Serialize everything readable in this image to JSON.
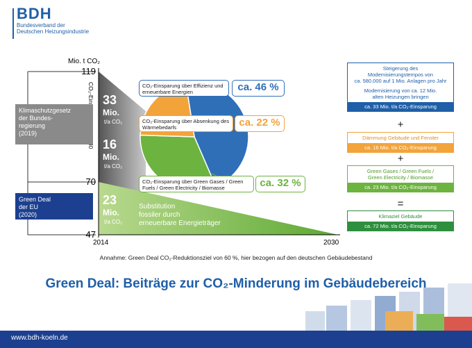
{
  "logo": {
    "abbr": "BDH",
    "line1": "Bundesverband der",
    "line2": "Deutschen Heizungsindustrie"
  },
  "chart_data": {
    "type": "pie",
    "ylabel_top": "Mio. t CO₂",
    "ylabel_side": "CO₂-Einsparung bis 2030",
    "y_ticks": [
      119,
      70,
      47
    ],
    "x_ticks": [
      "2014",
      "2030"
    ],
    "series": [
      {
        "name": "CO₂-Einsparung über Effizienz und erneuerbare Energien",
        "value": 46,
        "label": "ca. 46 %",
        "color": "#2f6fb8"
      },
      {
        "name": "CO₂-Einsparung über Absenkung des Wärmebedarfs",
        "value": 22,
        "label": "ca. 22 %",
        "color": "#f2a33a"
      },
      {
        "name": "CO₂-Einsparung über Green Gases / Green Fuels / Green Electricity / Biomasse",
        "value": 32,
        "label": "ca. 32 %",
        "color": "#6cb33f"
      }
    ],
    "wedge_values": [
      {
        "value": "33",
        "unit": "Mio.",
        "sub": "t/a CO₂"
      },
      {
        "value": "16",
        "unit": "Mio.",
        "sub": "t/a CO₂"
      },
      {
        "value": "23",
        "unit": "Mio.",
        "sub": "t/a CO₂"
      }
    ],
    "substitution_text": [
      "Substitution",
      "fossiler durch",
      "erneuerbare Energieträger"
    ]
  },
  "sidebar": {
    "klima": [
      "Klimaschutzgesetz",
      "der Bundes-",
      "regierung",
      "(2019)"
    ],
    "greendeal": [
      "Green Deal",
      "der EU",
      "(2020)"
    ]
  },
  "right_panel": {
    "box1_body": [
      "Steigerung des",
      "Modernisierungstempos von",
      "ca. 580.000 auf 1 Mio. Anlagen pro Jahr",
      "",
      "Modernisierung von ca. 12 Mio.",
      "alten Heizungen bringen"
    ],
    "box1_foot": "ca. 33 Mio. t/a CO₂-Einsparung",
    "box2_body": [
      "Dämmung Gebäude und Fenster"
    ],
    "box2_foot": "ca. 16 Mio. t/a CO₂-Einsparung",
    "box3_body": [
      "Green Gases / Green Fuels /",
      "Green Electricity / Biomasse"
    ],
    "box3_foot": "ca. 23 Mio. t/a CO₂-Einsparung",
    "box4_body": [
      "Klimaziel Gebäude"
    ],
    "box4_foot": "ca. 72 Mio. t/a CO₂-Einsparung",
    "plus": "+",
    "equals": "="
  },
  "note": "Annahme: Green Deal CO₂-Reduktionsziel von 60 %, hier bezogen auf den deutschen Gebäudebestand",
  "title": "Green Deal: Beiträge zur CO₂-Minderung im Gebäudebereich",
  "footer_url": "www.bdh-koeln.de",
  "colors": {
    "blue": "#2f6fb8",
    "orange": "#f2a33a",
    "green": "#6cb33f",
    "navy": "#1c3f8f",
    "grey": "#8a8a8a"
  }
}
